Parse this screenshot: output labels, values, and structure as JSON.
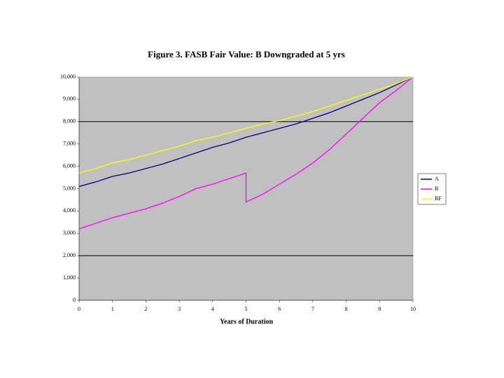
{
  "chart_data": {
    "type": "line",
    "title": "Figure 3. FASB Fair Value: B Downgraded at 5 yrs",
    "x_label": "Years of Duration",
    "x": [
      0,
      0.5,
      1,
      1.5,
      2,
      2.5,
      3,
      3.5,
      4,
      4.5,
      5,
      5,
      5.5,
      6,
      6.5,
      7,
      7.5,
      8,
      8.5,
      9,
      9.5,
      10
    ],
    "series": [
      {
        "name": "A",
        "color": "#000080",
        "values": [
          5100,
          5300,
          5550,
          5700,
          5900,
          6100,
          6350,
          6600,
          6850,
          7050,
          7300,
          7300,
          7500,
          7700,
          7900,
          8150,
          8400,
          8700,
          9000,
          9300,
          9650,
          10000
        ]
      },
      {
        "name": "B",
        "color": "#ff00ff",
        "values": [
          3200,
          3450,
          3700,
          3900,
          4100,
          4350,
          4650,
          5000,
          5200,
          5450,
          5700,
          4400,
          4750,
          5200,
          5650,
          6150,
          6750,
          7450,
          8150,
          8850,
          9400,
          10000
        ]
      },
      {
        "name": "RF",
        "color": "#ffff00",
        "values": [
          5700,
          5900,
          6150,
          6300,
          6500,
          6700,
          6900,
          7150,
          7300,
          7500,
          7700,
          7700,
          7900,
          8050,
          8250,
          8450,
          8700,
          8950,
          9200,
          9450,
          9700,
          10000
        ]
      }
    ],
    "xlim": [
      0,
      10
    ],
    "xticks": [
      0,
      1,
      2,
      3,
      4,
      5,
      6,
      7,
      8,
      9,
      10
    ],
    "ylim": [
      0,
      10000
    ],
    "yticks": [
      0,
      {
        "value": 1000,
        "label": "1,000"
      },
      {
        "value": 2000,
        "label": "2,000"
      },
      {
        "value": 3000,
        "label": "3,000"
      },
      {
        "value": 4000,
        "label": "4,000"
      },
      {
        "value": 5000,
        "label": "5,000"
      },
      {
        "value": 6000,
        "label": "6,000"
      },
      {
        "value": 7000,
        "label": "7,000"
      },
      {
        "value": 8000,
        "label": "8,000"
      },
      {
        "value": 9000,
        "label": "9,000"
      },
      {
        "value": 10000,
        "label": "10,000"
      }
    ],
    "grid_lines": [
      2000,
      8000
    ],
    "plot_background": "#c0c0c0",
    "legend": "right"
  }
}
